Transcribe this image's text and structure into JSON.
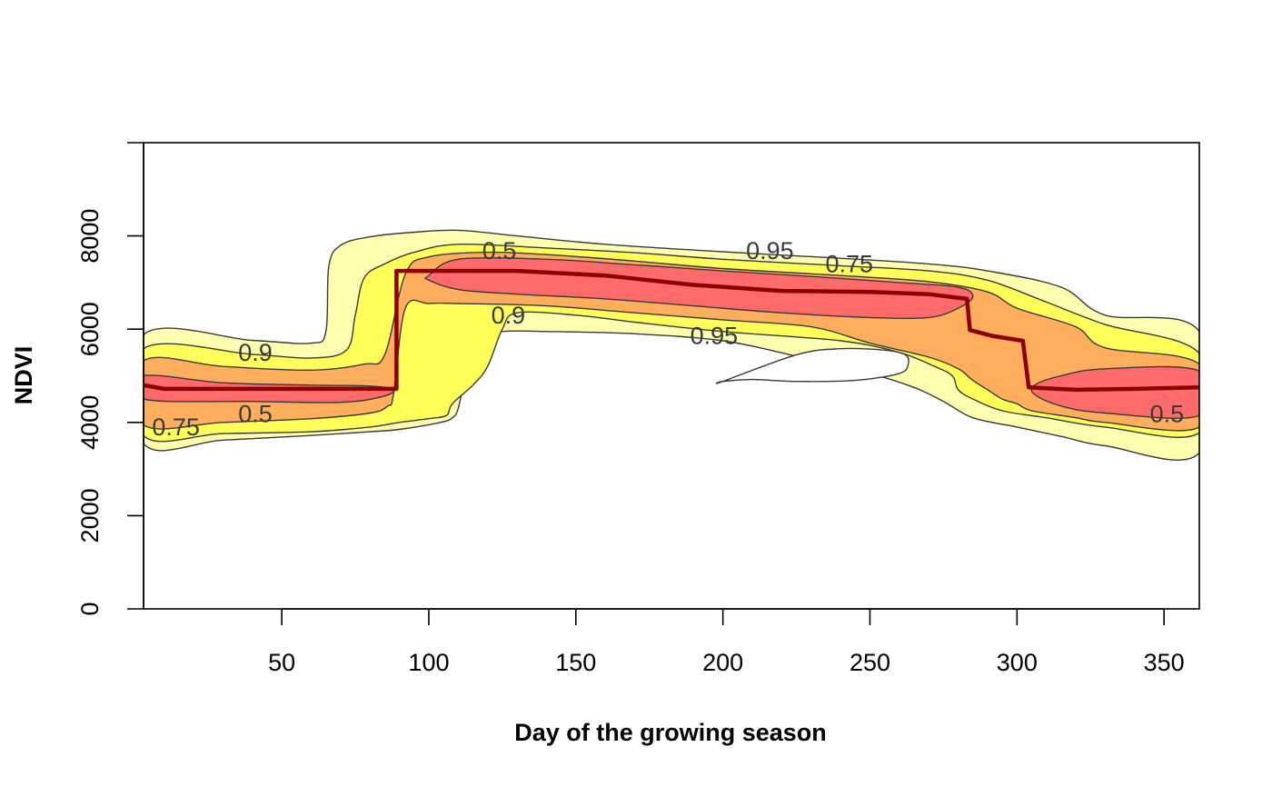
{
  "chart_data": {
    "type": "contour",
    "title": "",
    "xlabel": "Day of the growing season",
    "ylabel": "NDVI",
    "xlim": [
      3,
      362
    ],
    "ylim": [
      0,
      10000
    ],
    "x_ticks": [
      50,
      100,
      150,
      200,
      250,
      300,
      350
    ],
    "y_ticks": [
      0,
      2000,
      4000,
      6000,
      8000
    ],
    "grid": false,
    "contour_levels": [
      "0.5",
      "0.75",
      "0.9",
      "0.95"
    ],
    "contour_label_list": [
      {
        "text": "0.5",
        "x": 41,
        "y": 4200
      },
      {
        "text": "0.75",
        "x": 14,
        "y": 3920
      },
      {
        "text": "0.9",
        "x": 41,
        "y": 5520
      },
      {
        "text": "0.5",
        "x": 124,
        "y": 7700
      },
      {
        "text": "0.9",
        "x": 127,
        "y": 6320
      },
      {
        "text": "0.95",
        "x": 197,
        "y": 5880
      },
      {
        "text": "0.95",
        "x": 216,
        "y": 7700
      },
      {
        "text": "0.75",
        "x": 243,
        "y": 7420
      },
      {
        "text": "0.5",
        "x": 351,
        "y": 4200
      }
    ],
    "fill_colors": {
      "0.5": "#ff6b6b",
      "0.75": "#ffae5e",
      "0.9": "#ffff5a",
      "0.95": "#ffffb0"
    },
    "median_line_color": "#8b0000",
    "median_line": {
      "x": [
        3,
        10,
        30,
        60,
        89,
        89,
        95,
        110,
        130,
        160,
        190,
        220,
        250,
        270,
        283,
        284,
        292,
        302,
        304,
        320,
        340,
        362
      ],
      "y": [
        4800,
        4720,
        4720,
        4720,
        4720,
        7250,
        7250,
        7250,
        7250,
        7150,
        6950,
        6820,
        6800,
        6750,
        6650,
        5980,
        5850,
        5750,
        4750,
        4700,
        4720,
        4750
      ]
    },
    "bands": [
      {
        "level": "0.95",
        "fill": "#ffffb0",
        "stroke": true,
        "x": [
          3,
          40,
          60,
          65,
          66,
          70,
          80,
          95,
          110,
          130,
          160,
          200,
          240,
          270,
          290,
          315,
          330,
          362,
          362,
          330,
          315,
          300,
          285,
          275,
          265,
          250,
          225,
          200,
          170,
          140,
          125,
          118,
          113,
          110,
          108,
          104,
          90,
          80,
          60,
          30,
          3
        ],
        "y": [
          5880,
          5760,
          5700,
          5950,
          7350,
          7800,
          7980,
          8080,
          8120,
          8000,
          7820,
          7660,
          7520,
          7400,
          7250,
          6900,
          6300,
          5950,
          3350,
          3500,
          3700,
          3900,
          4100,
          4450,
          4750,
          5050,
          5420,
          5750,
          5900,
          5950,
          5950,
          5800,
          5100,
          4300,
          4100,
          4000,
          3850,
          3800,
          3720,
          3620,
          3550
        ]
      },
      {
        "level": "0.95-hole",
        "fill": "#ffffff",
        "stroke": true,
        "x": [
          200,
          210,
          225,
          245,
          260,
          263,
          262,
          255,
          240,
          225,
          200
        ],
        "y": [
          4880,
          4920,
          4880,
          4900,
          5050,
          5250,
          5450,
          5550,
          5580,
          5450,
          4880
        ]
      },
      {
        "level": "0.9",
        "fill": "#ffff5a",
        "stroke": true,
        "x": [
          3,
          40,
          60,
          72,
          75,
          78,
          85,
          95,
          110,
          140,
          170,
          200,
          240,
          270,
          290,
          310,
          330,
          362,
          362,
          330,
          310,
          295,
          285,
          280,
          278,
          272,
          260,
          240,
          200,
          170,
          150,
          130,
          125,
          120,
          115,
          108,
          106,
          100,
          90,
          80,
          60,
          30,
          3
        ],
        "y": [
          5580,
          5460,
          5380,
          5550,
          6300,
          7100,
          7400,
          7650,
          7820,
          7740,
          7640,
          7500,
          7360,
          7250,
          7050,
          6580,
          6100,
          5480,
          3780,
          3900,
          4100,
          4250,
          4500,
          4700,
          5000,
          5200,
          5500,
          5750,
          5950,
          6150,
          6300,
          6350,
          6000,
          5200,
          4800,
          4400,
          4150,
          4080,
          4000,
          3900,
          3800,
          3760,
          3720
        ]
      },
      {
        "level": "0.75",
        "fill": "#ffae5e",
        "stroke": true,
        "x": [
          3,
          30,
          60,
          78,
          85,
          92,
          100,
          120,
          140,
          170,
          200,
          240,
          270,
          290,
          300,
          320,
          330,
          362,
          362,
          330,
          320,
          305,
          300,
          295,
          290,
          285,
          280,
          270,
          250,
          230,
          200,
          170,
          140,
          110,
          100,
          92,
          88,
          86,
          80,
          60,
          30,
          3
        ],
        "y": [
          5320,
          5200,
          5120,
          5250,
          5450,
          7180,
          7550,
          7650,
          7600,
          7460,
          7300,
          7150,
          7020,
          6800,
          6450,
          6050,
          5600,
          5250,
          3900,
          4000,
          4100,
          4250,
          4400,
          4500,
          4700,
          4900,
          5150,
          5400,
          5700,
          6050,
          6200,
          6350,
          6500,
          6550,
          6550,
          6450,
          4600,
          4350,
          4200,
          4080,
          4000,
          3950
        ]
      },
      {
        "level": "0.5",
        "fill": "#ff6b6b",
        "stroke": true,
        "x": [
          3,
          30,
          60,
          80,
          88,
          84,
          70,
          40,
          3
        ],
        "y": [
          5000,
          4850,
          4800,
          4780,
          4700,
          4550,
          4430,
          4450,
          4500
        ]
      },
      {
        "level": "0.5",
        "fill": "#ff6b6b",
        "stroke": true,
        "x": [
          100,
          110,
          140,
          170,
          200,
          230,
          260,
          280,
          285,
          280,
          270,
          250,
          220,
          190,
          160,
          130,
          110,
          100
        ],
        "y": [
          7150,
          7500,
          7500,
          7380,
          7250,
          7130,
          7000,
          6900,
          6700,
          6450,
          6250,
          6250,
          6350,
          6500,
          6650,
          6750,
          6850,
          7050
        ]
      },
      {
        "level": "0.5",
        "fill": "#ff6b6b",
        "stroke": true,
        "x": [
          306,
          315,
          330,
          362,
          362,
          330,
          315,
          306
        ],
        "y": [
          4800,
          5000,
          5150,
          5100,
          4150,
          4200,
          4350,
          4600
        ]
      }
    ]
  }
}
